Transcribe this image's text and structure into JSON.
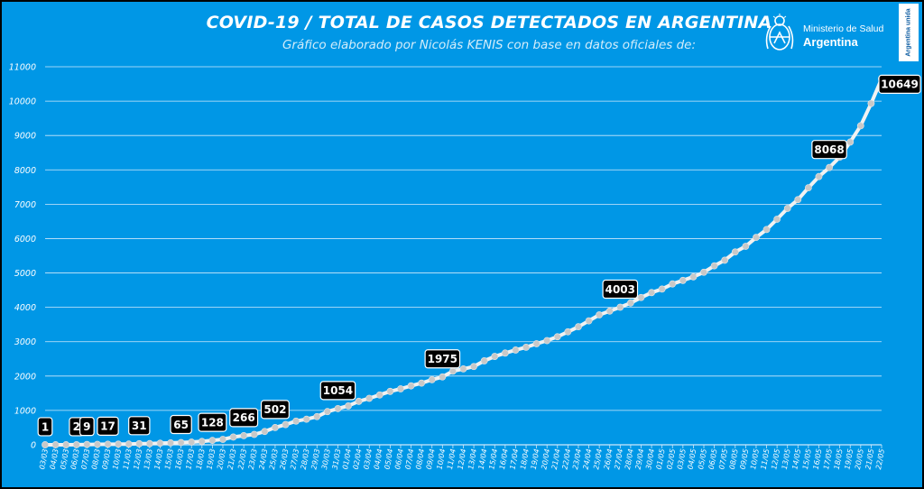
{
  "header": {
    "title": "COVID-19  /  TOTAL DE CASOS DETECTADOS EN ARGENTINA",
    "subtitle": "Gráfico elaborado por Nicolás KENIS con base en datos oficiales de:",
    "ministry_line1": "Ministerio de Salud",
    "ministry_line2": "Argentina",
    "badge": "Argentina unida",
    "seal_icon": "argentina-coat-of-arms-icon"
  },
  "colors": {
    "background": "#0097e6",
    "grid": "#cfe9fb",
    "line": "#f2f2f2",
    "marker": "#c8c8c8",
    "label_box": "#000000"
  },
  "chart_data": {
    "type": "line",
    "title": "COVID-19  /  TOTAL DE CASOS DETECTADOS EN ARGENTINA",
    "xlabel": "",
    "ylabel": "",
    "ylim": [
      0,
      11000
    ],
    "yticks": [
      0,
      1000,
      2000,
      3000,
      4000,
      5000,
      6000,
      7000,
      8000,
      9000,
      10000,
      11000
    ],
    "grid": true,
    "legend": "none",
    "x": [
      "03/03",
      "04/03",
      "05/03",
      "06/03",
      "07/03",
      "08/03",
      "09/03",
      "10/03",
      "11/03",
      "12/03",
      "13/03",
      "14/03",
      "15/03",
      "16/03",
      "17/03",
      "18/03",
      "19/03",
      "20/03",
      "21/03",
      "22/03",
      "23/03",
      "24/03",
      "25/03",
      "26/03",
      "27/03",
      "28/03",
      "29/03",
      "30/03",
      "31/03",
      "01/04",
      "02/04",
      "03/04",
      "04/04",
      "05/04",
      "06/04",
      "07/04",
      "08/04",
      "09/04",
      "10/04",
      "11/04",
      "12/04",
      "13/04",
      "14/04",
      "15/04",
      "16/04",
      "17/04",
      "18/04",
      "19/04",
      "20/04",
      "21/04",
      "22/04",
      "23/04",
      "24/04",
      "25/04",
      "26/04",
      "27/04",
      "28/04",
      "29/04",
      "30/04",
      "01/05",
      "02/05",
      "03/05",
      "04/05",
      "05/05",
      "06/05",
      "07/05",
      "08/05",
      "09/05",
      "10/05",
      "11/05",
      "12/05",
      "13/05",
      "14/05",
      "15/05",
      "16/05",
      "17/05",
      "18/05",
      "19/05",
      "20/05",
      "21/05",
      "22/05"
    ],
    "series": [
      {
        "values": [
          1,
          1,
          1,
          2,
          9,
          12,
          17,
          19,
          21,
          31,
          34,
          45,
          56,
          65,
          79,
          97,
          128,
          158,
          225,
          266,
          301,
          387,
          502,
          589,
          690,
          745,
          820,
          966,
          1054,
          1133,
          1265,
          1353,
          1451,
          1554,
          1628,
          1715,
          1795,
          1894,
          1975,
          2142,
          2208,
          2277,
          2443,
          2571,
          2669,
          2758,
          2839,
          2941,
          3031,
          3144,
          3288,
          3435,
          3607,
          3780,
          3892,
          4003,
          4127,
          4285,
          4428,
          4532,
          4681,
          4783,
          4887,
          5020,
          5208,
          5371,
          5611,
          5776,
          6034,
          6265,
          6563,
          6879,
          7134,
          7479,
          7805,
          8068,
          8371,
          8809,
          9283,
          9931,
          10649
        ]
      }
    ],
    "data_labels": [
      {
        "x": "03/03",
        "text": "1"
      },
      {
        "x": "06/03",
        "text": "2"
      },
      {
        "x": "07/03",
        "text": "9"
      },
      {
        "x": "09/03",
        "text": "17"
      },
      {
        "x": "12/03",
        "text": "31"
      },
      {
        "x": "16/03",
        "text": "65"
      },
      {
        "x": "19/03",
        "text": "128"
      },
      {
        "x": "22/03",
        "text": "266"
      },
      {
        "x": "25/03",
        "text": "502"
      },
      {
        "x": "31/03",
        "text": "1054"
      },
      {
        "x": "10/04",
        "text": "1975"
      },
      {
        "x": "27/04",
        "text": "4003"
      },
      {
        "x": "17/05",
        "text": "8068"
      },
      {
        "x": "22/05",
        "text": "10649"
      }
    ]
  }
}
